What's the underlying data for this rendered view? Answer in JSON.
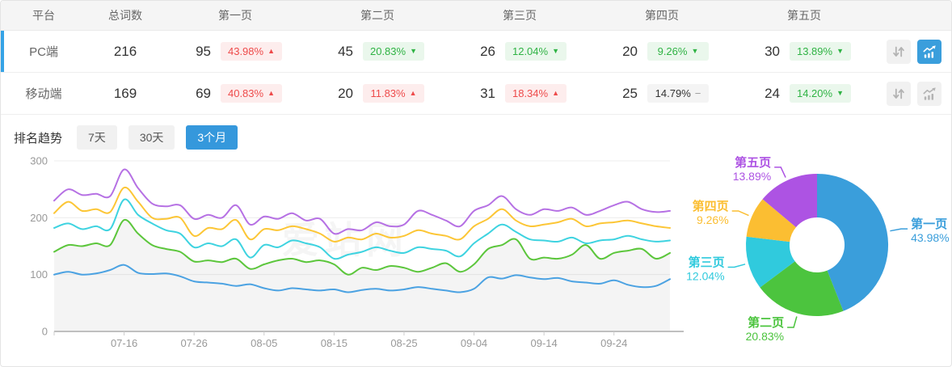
{
  "table": {
    "columns": [
      "平台",
      "总词数",
      "第一页",
      "第二页",
      "第三页",
      "第四页",
      "第五页",
      ""
    ],
    "rows": [
      {
        "platform": "PC端",
        "total": "216",
        "active": true,
        "chart_active": true,
        "pages": [
          {
            "count": "95",
            "pct": "43.98%",
            "dir": "up"
          },
          {
            "count": "45",
            "pct": "20.83%",
            "dir": "down"
          },
          {
            "count": "26",
            "pct": "12.04%",
            "dir": "down"
          },
          {
            "count": "20",
            "pct": "9.26%",
            "dir": "down"
          },
          {
            "count": "30",
            "pct": "13.89%",
            "dir": "down"
          }
        ]
      },
      {
        "platform": "移动端",
        "total": "169",
        "active": false,
        "chart_active": false,
        "pages": [
          {
            "count": "69",
            "pct": "40.83%",
            "dir": "up"
          },
          {
            "count": "20",
            "pct": "11.83%",
            "dir": "up"
          },
          {
            "count": "31",
            "pct": "18.34%",
            "dir": "up"
          },
          {
            "count": "25",
            "pct": "14.79%",
            "dir": "flat"
          },
          {
            "count": "24",
            "pct": "14.20%",
            "dir": "down"
          }
        ]
      }
    ]
  },
  "trend": {
    "label": "排名趋势",
    "ranges": [
      {
        "label": "7天",
        "active": false
      },
      {
        "label": "30天",
        "active": false
      },
      {
        "label": "3个月",
        "active": true
      }
    ]
  },
  "watermark": "爱站网",
  "colors": {
    "accent_blue": "#3a9edc",
    "up_red": "#ee4b4b",
    "up_red_bg": "#fdeded",
    "down_green": "#2fb344",
    "down_green_bg": "#eaf7ec",
    "flat_bg": "#f4f4f4",
    "row_accent": "#35a3e6"
  },
  "chart_data": [
    {
      "type": "line",
      "title": "排名趋势 3个月",
      "xlabel": "",
      "ylabel": "",
      "ylim": [
        0,
        300
      ],
      "yticks": [
        0,
        100,
        200,
        300
      ],
      "grid": true,
      "legend": "none",
      "stacked_cumulative": true,
      "area_under_series_index": 1,
      "total_days": 88,
      "point_step_days": 2,
      "x_tick_days": [
        10,
        20,
        30,
        40,
        50,
        60,
        70,
        80
      ],
      "x_tick_labels": [
        "07-16",
        "07-26",
        "08-05",
        "08-15",
        "08-25",
        "09-04",
        "09-14",
        "09-24"
      ],
      "series": [
        {
          "name": "第一页",
          "color": "#4ba2e2",
          "values": [
            100,
            105,
            100,
            102,
            108,
            117,
            103,
            101,
            102,
            97,
            88,
            86,
            84,
            80,
            83,
            76,
            72,
            76,
            74,
            72,
            74,
            69,
            73,
            75,
            72,
            74,
            78,
            75,
            72,
            69,
            75,
            95,
            93,
            99,
            95,
            92,
            94,
            88,
            86,
            84,
            90,
            82,
            78,
            80,
            92
          ]
        },
        {
          "name": "第二页",
          "color": "#5cc63c",
          "values": [
            140,
            152,
            150,
            155,
            152,
            196,
            172,
            152,
            145,
            140,
            123,
            125,
            122,
            128,
            110,
            118,
            125,
            128,
            122,
            125,
            118,
            100,
            112,
            108,
            115,
            112,
            105,
            112,
            120,
            105,
            118,
            145,
            152,
            162,
            128,
            130,
            128,
            135,
            152,
            128,
            138,
            142,
            145,
            128,
            138
          ]
        },
        {
          "name": "第三页",
          "color": "#3ed3e0",
          "values": [
            182,
            190,
            180,
            185,
            180,
            232,
            205,
            190,
            178,
            172,
            148,
            155,
            150,
            162,
            130,
            152,
            148,
            160,
            155,
            148,
            128,
            135,
            140,
            148,
            142,
            138,
            148,
            145,
            142,
            132,
            155,
            172,
            188,
            175,
            162,
            160,
            158,
            165,
            155,
            160,
            162,
            168,
            162,
            158,
            160
          ]
        },
        {
          "name": "第四页",
          "color": "#fcc636",
          "values": [
            208,
            228,
            212,
            215,
            210,
            253,
            228,
            200,
            198,
            200,
            168,
            182,
            180,
            196,
            162,
            180,
            178,
            185,
            180,
            172,
            158,
            165,
            162,
            172,
            165,
            168,
            178,
            172,
            168,
            162,
            185,
            198,
            215,
            195,
            185,
            188,
            192,
            198,
            185,
            190,
            192,
            195,
            190,
            185,
            182
          ]
        },
        {
          "name": "第五页",
          "color": "#b671e4",
          "values": [
            230,
            250,
            240,
            242,
            238,
            285,
            252,
            225,
            220,
            222,
            198,
            205,
            200,
            222,
            188,
            202,
            198,
            208,
            195,
            198,
            172,
            180,
            178,
            192,
            185,
            188,
            212,
            205,
            195,
            185,
            212,
            222,
            238,
            215,
            205,
            215,
            212,
            218,
            205,
            212,
            222,
            228,
            215,
            210,
            212
          ]
        }
      ]
    },
    {
      "type": "pie",
      "donut": true,
      "start_angle": "top",
      "direction": "clockwise",
      "slices": [
        {
          "label": "第一页",
          "value": 43.98,
          "color": "#3a9edb"
        },
        {
          "label": "第二页",
          "value": 20.83,
          "color": "#4cc43e"
        },
        {
          "label": "第三页",
          "value": 12.04,
          "color": "#30cadd"
        },
        {
          "label": "第四页",
          "value": 9.26,
          "color": "#fbbe32"
        },
        {
          "label": "第五页",
          "value": 13.89,
          "color": "#ad53e3"
        }
      ]
    }
  ]
}
